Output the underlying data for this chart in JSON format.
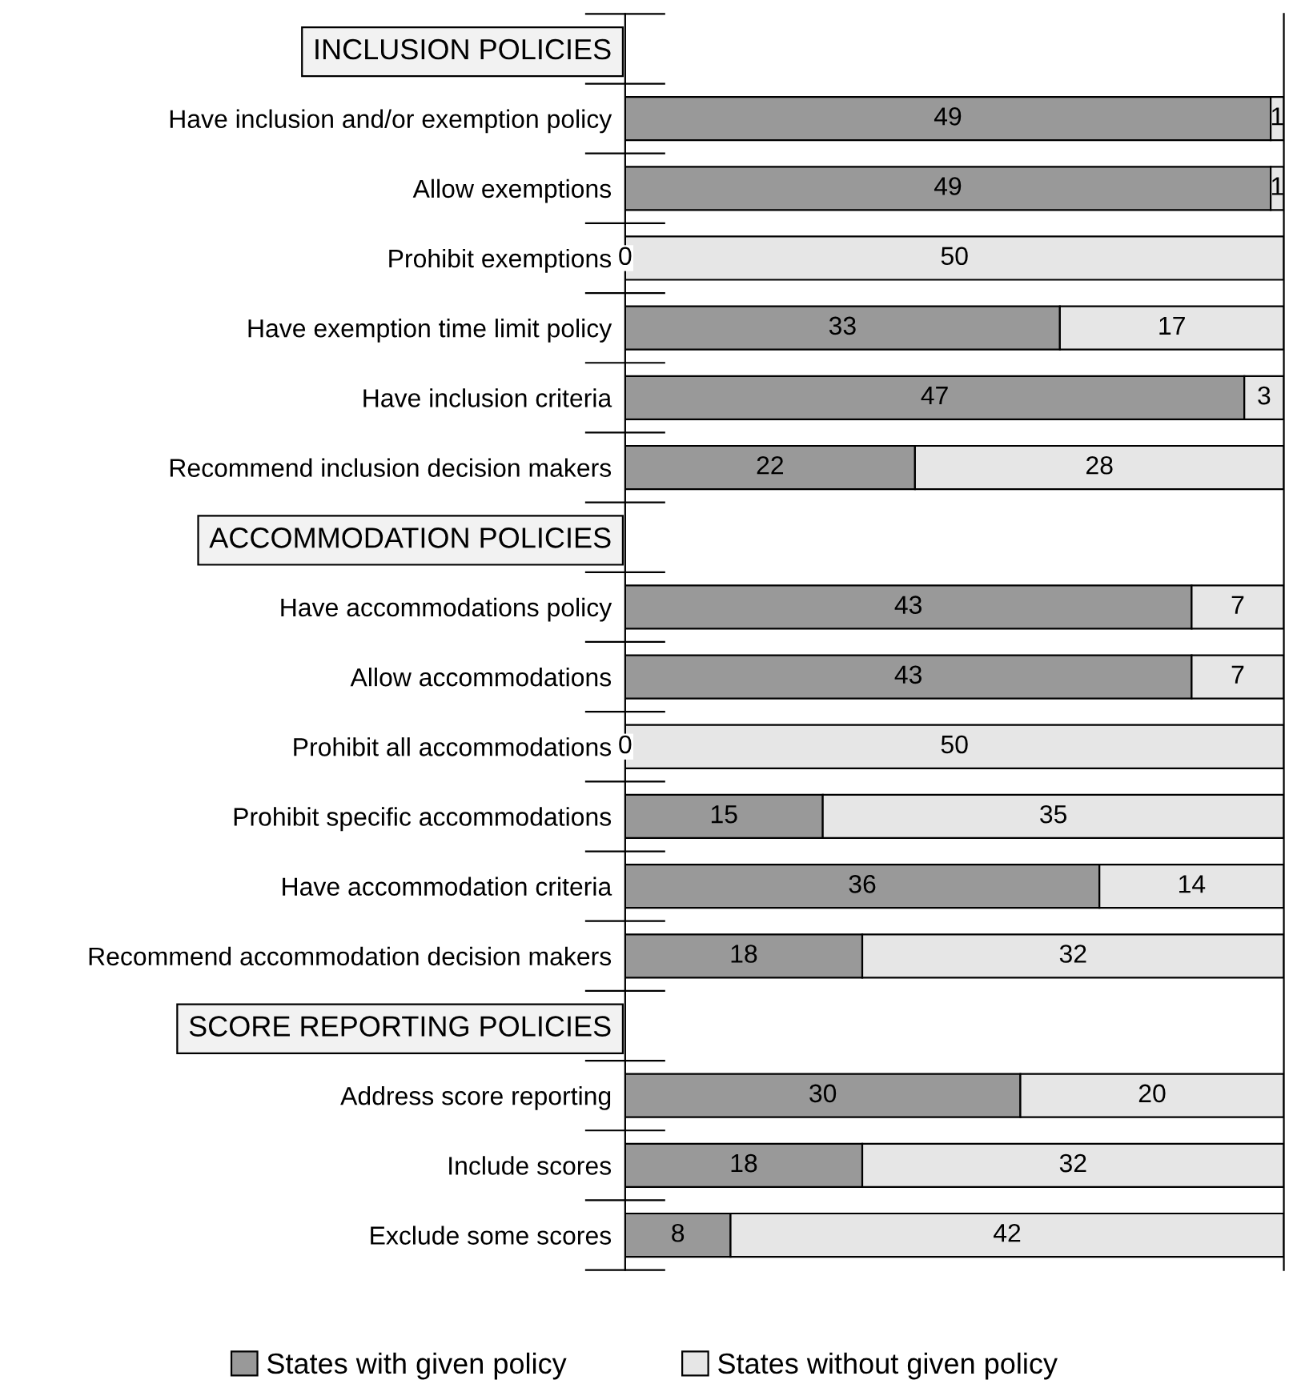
{
  "chart_data": {
    "type": "bar",
    "orientation": "horizontal",
    "stacked": true,
    "tick_labels": "y",
    "legend": "bottom",
    "xlim": [
      0,
      50
    ],
    "categories": [
      "INCLUSION POLICIES",
      "Have inclusion and/or exemption policy",
      "Allow exemptions",
      "Prohibit exemptions",
      "Have exemption time limit policy",
      "Have inclusion criteria",
      "Recommend inclusion decision makers",
      "ACCOMMODATION POLICIES",
      "Have accommodations policy",
      "Allow accommodations",
      "Prohibit all accommodations",
      "Prohibit specific accommodations",
      "Have accommodation criteria",
      "Recommend accommodation decision makers",
      "SCORE REPORTING POLICIES",
      "Address score reporting",
      "Include scores",
      "Exclude some scores"
    ],
    "series": [
      {
        "name": "States with given policy",
        "color": "#999999",
        "values": [
          null,
          49,
          49,
          0,
          33,
          47,
          22,
          null,
          43,
          43,
          0,
          15,
          36,
          18,
          null,
          30,
          18,
          8
        ],
        "value_labels": [
          null,
          "49",
          "49",
          null,
          "33",
          "47",
          "22",
          null,
          "43",
          "43",
          null,
          "15",
          "36",
          "18",
          null,
          "30",
          "18",
          "8"
        ]
      },
      {
        "name": "States without given policy",
        "color": "#e6e6e6",
        "values": [
          null,
          1,
          1,
          50,
          17,
          3,
          28,
          null,
          7,
          7,
          50,
          35,
          14,
          32,
          null,
          20,
          32,
          42
        ],
        "value_labels": [
          null,
          "1",
          "1",
          "50",
          "17",
          "3",
          "28",
          null,
          "7",
          "7",
          "50",
          "35",
          "14",
          "32",
          null,
          "20",
          "32",
          "42"
        ]
      }
    ],
    "annotations": [
      {
        "text": "0",
        "x": 0,
        "y": "Prohibit exemptions"
      },
      {
        "text": "0",
        "x": 0,
        "y": "Prohibit all accommodations"
      }
    ]
  }
}
